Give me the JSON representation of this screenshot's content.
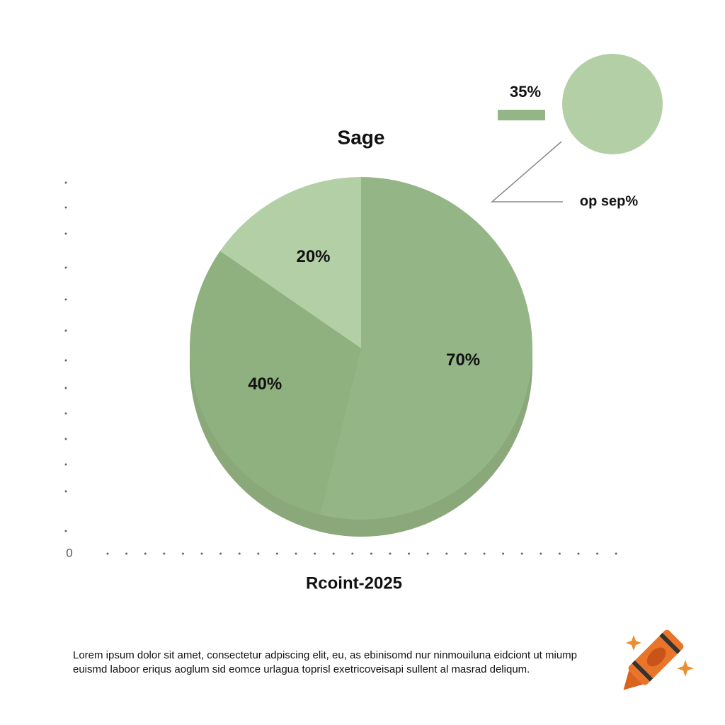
{
  "chart_data": {
    "type": "pie",
    "title": "Sage",
    "xlabel": "Rcoint-2025",
    "origin_label": "0",
    "values": [
      70,
      40,
      20
    ],
    "value_labels": [
      "70%",
      "40%",
      "20%"
    ],
    "colors": [
      "#94b585",
      "#8fb07f",
      "#b3cfa6"
    ],
    "side_color": "#8aa87a",
    "annotations": [
      {
        "text": "35%",
        "color": "#94b585"
      },
      {
        "text": "op sep%",
        "color": "#b3cfa6"
      }
    ]
  },
  "footer": {
    "lines": [
      "Lorem ipsum dolor sit amet, consectetur adpiscing elit, eu, as ebinisomd nur ninmouiluna eidciont ut miump",
      "euismd laboor eriqus aoglum sid eomce urlagua toprisl exetricoveisapi sullent al masrad deliqum."
    ]
  }
}
